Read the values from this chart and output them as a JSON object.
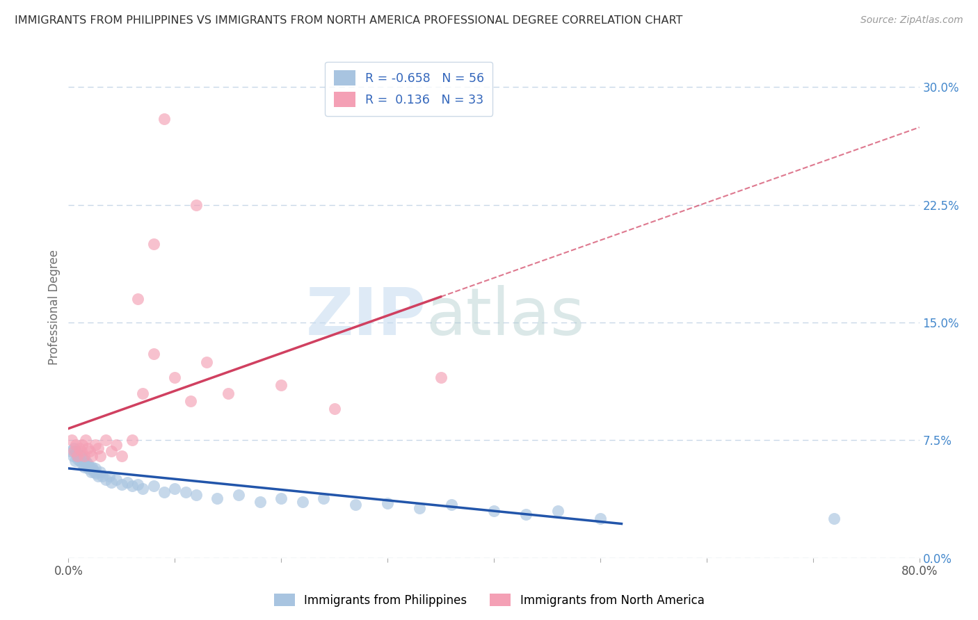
{
  "title": "IMMIGRANTS FROM PHILIPPINES VS IMMIGRANTS FROM NORTH AMERICA PROFESSIONAL DEGREE CORRELATION CHART",
  "source": "Source: ZipAtlas.com",
  "ylabel": "Professional Degree",
  "r_blue": -0.658,
  "n_blue": 56,
  "r_pink": 0.136,
  "n_pink": 33,
  "color_blue": "#a8c4e0",
  "color_pink": "#f4a0b5",
  "trendline_blue": "#2255aa",
  "trendline_pink": "#d04060",
  "legend_blue_label": "Immigrants from Philippines",
  "legend_pink_label": "Immigrants from North America",
  "xlim": [
    0.0,
    0.8
  ],
  "ylim": [
    0.0,
    0.32
  ],
  "yticks_right": [
    0.0,
    0.075,
    0.15,
    0.225,
    0.3
  ],
  "watermark_zip": "ZIP",
  "watermark_atlas": "atlas",
  "background_color": "#ffffff",
  "grid_color": "#c8d8e8",
  "blue_x": [
    0.002,
    0.004,
    0.005,
    0.006,
    0.007,
    0.008,
    0.009,
    0.01,
    0.011,
    0.012,
    0.013,
    0.014,
    0.015,
    0.016,
    0.017,
    0.018,
    0.019,
    0.02,
    0.021,
    0.022,
    0.023,
    0.024,
    0.025,
    0.026,
    0.028,
    0.03,
    0.032,
    0.035,
    0.038,
    0.04,
    0.045,
    0.05,
    0.055,
    0.06,
    0.065,
    0.07,
    0.08,
    0.09,
    0.1,
    0.11,
    0.12,
    0.14,
    0.16,
    0.18,
    0.2,
    0.22,
    0.24,
    0.27,
    0.3,
    0.33,
    0.36,
    0.4,
    0.43,
    0.46,
    0.5,
    0.72
  ],
  "blue_y": [
    0.068,
    0.065,
    0.07,
    0.062,
    0.068,
    0.065,
    0.063,
    0.066,
    0.062,
    0.065,
    0.06,
    0.063,
    0.058,
    0.062,
    0.059,
    0.06,
    0.057,
    0.058,
    0.055,
    0.058,
    0.056,
    0.055,
    0.057,
    0.054,
    0.052,
    0.055,
    0.052,
    0.05,
    0.052,
    0.048,
    0.05,
    0.047,
    0.048,
    0.046,
    0.047,
    0.044,
    0.046,
    0.042,
    0.044,
    0.042,
    0.04,
    0.038,
    0.04,
    0.036,
    0.038,
    0.036,
    0.038,
    0.034,
    0.035,
    0.032,
    0.034,
    0.03,
    0.028,
    0.03,
    0.025,
    0.025
  ],
  "pink_x": [
    0.003,
    0.005,
    0.007,
    0.008,
    0.01,
    0.012,
    0.013,
    0.015,
    0.016,
    0.018,
    0.02,
    0.022,
    0.025,
    0.028,
    0.03,
    0.035,
    0.04,
    0.045,
    0.05,
    0.06,
    0.065,
    0.07,
    0.08,
    0.09,
    0.1,
    0.115,
    0.13,
    0.15,
    0.2,
    0.25,
    0.08,
    0.12,
    0.35
  ],
  "pink_y": [
    0.075,
    0.068,
    0.072,
    0.065,
    0.07,
    0.068,
    0.072,
    0.065,
    0.075,
    0.07,
    0.068,
    0.065,
    0.072,
    0.07,
    0.065,
    0.075,
    0.068,
    0.072,
    0.065,
    0.075,
    0.165,
    0.105,
    0.13,
    0.28,
    0.115,
    0.1,
    0.125,
    0.105,
    0.11,
    0.095,
    0.2,
    0.225,
    0.115
  ]
}
